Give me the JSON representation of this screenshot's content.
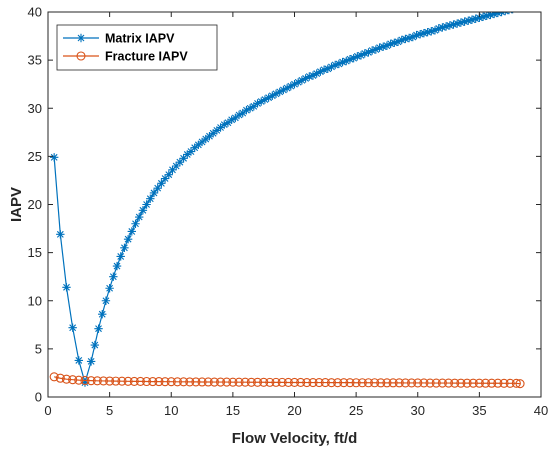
{
  "chart_data": {
    "type": "line",
    "xlabel": "Flow Velocity, ft/d",
    "ylabel": "IAPV",
    "xlim": [
      0,
      40
    ],
    "ylim": [
      0,
      40
    ],
    "xticks": [
      0,
      5,
      10,
      15,
      20,
      25,
      30,
      35,
      40
    ],
    "yticks": [
      0,
      5,
      10,
      15,
      20,
      25,
      30,
      35,
      40
    ],
    "grid": false,
    "legend_position": "top-left",
    "series": [
      {
        "name": "Matrix IAPV",
        "color": "#0072BD",
        "marker": "asterisk",
        "x": [
          0.5,
          1.0,
          1.5,
          2.0,
          2.5,
          3.0,
          3.5,
          3.8,
          4.1,
          4.4,
          4.7,
          5.0,
          5.3,
          5.6,
          5.9,
          6.2,
          6.5,
          6.8,
          7.1,
          7.4,
          7.7,
          8.0,
          8.3,
          8.6,
          8.9,
          9.2,
          9.5,
          9.8,
          10.1,
          10.4,
          10.7,
          11.0,
          11.3,
          11.6,
          11.9,
          12.2,
          12.5,
          12.8,
          13.1,
          13.4,
          13.7,
          14.0,
          14.3,
          14.6,
          14.9,
          15.2,
          15.5,
          15.8,
          16.1,
          16.4,
          16.7,
          17.0,
          17.3,
          17.6,
          17.9,
          18.2,
          18.5,
          18.8,
          19.1,
          19.4,
          19.7,
          20.0,
          20.3,
          20.6,
          20.9,
          21.2,
          21.5,
          21.8,
          22.1,
          22.4,
          22.7,
          23.0,
          23.3,
          23.6,
          23.9,
          24.2,
          24.5,
          24.8,
          25.1,
          25.4,
          25.7,
          26.0,
          26.3,
          26.6,
          26.9,
          27.2,
          27.5,
          27.8,
          28.1,
          28.4,
          28.7,
          29.0,
          29.3,
          29.6,
          29.9,
          30.2,
          30.5,
          30.8,
          31.1,
          31.4,
          31.7,
          32.0,
          32.3,
          32.6,
          32.9,
          33.2,
          33.5,
          33.8,
          34.1,
          34.4,
          34.7,
          35.0,
          35.3,
          35.6,
          35.9,
          36.2,
          36.5,
          36.8,
          37.1,
          37.4,
          37.7,
          38.0,
          38.3
        ],
        "y": [
          24.9,
          16.9,
          11.4,
          7.2,
          3.8,
          1.5,
          3.7,
          5.4,
          7.1,
          8.6,
          10.0,
          11.3,
          12.5,
          13.6,
          14.6,
          15.5,
          16.4,
          17.2,
          18.0,
          18.7,
          19.4,
          20.0,
          20.6,
          21.2,
          21.7,
          22.2,
          22.7,
          23.1,
          23.6,
          24.0,
          24.4,
          24.8,
          25.2,
          25.5,
          25.9,
          26.2,
          26.5,
          26.8,
          27.1,
          27.4,
          27.7,
          28.0,
          28.3,
          28.5,
          28.8,
          29.0,
          29.3,
          29.5,
          29.8,
          30.0,
          30.2,
          30.5,
          30.7,
          30.9,
          31.1,
          31.3,
          31.5,
          31.7,
          31.9,
          32.1,
          32.3,
          32.5,
          32.7,
          32.9,
          33.1,
          33.3,
          33.4,
          33.6,
          33.8,
          34.0,
          34.1,
          34.3,
          34.5,
          34.6,
          34.8,
          34.9,
          35.1,
          35.2,
          35.4,
          35.5,
          35.7,
          35.8,
          36.0,
          36.1,
          36.3,
          36.4,
          36.5,
          36.7,
          36.8,
          36.9,
          37.1,
          37.2,
          37.3,
          37.4,
          37.6,
          37.7,
          37.8,
          37.9,
          38.0,
          38.1,
          38.3,
          38.4,
          38.5,
          38.6,
          38.7,
          38.8,
          38.9,
          39.0,
          39.1,
          39.2,
          39.3,
          39.4,
          39.5,
          39.6,
          39.7,
          39.8,
          39.9,
          40.0,
          40.1,
          40.2,
          40.3,
          40.4,
          40.5
        ]
      },
      {
        "name": "Fracture IAPV",
        "color": "#D95319",
        "marker": "circle",
        "x": [
          0.5,
          1.0,
          1.5,
          2.0,
          2.5,
          3.0,
          3.5,
          4.0,
          4.5,
          5.0,
          5.5,
          6.0,
          6.5,
          7.0,
          7.5,
          8.0,
          8.5,
          9.0,
          9.5,
          10.0,
          10.5,
          11.0,
          11.5,
          12.0,
          12.5,
          13.0,
          13.5,
          14.0,
          14.5,
          15.0,
          15.5,
          16.0,
          16.5,
          17.0,
          17.5,
          18.0,
          18.5,
          19.0,
          19.5,
          20.0,
          20.5,
          21.0,
          21.5,
          22.0,
          22.5,
          23.0,
          23.5,
          24.0,
          24.5,
          25.0,
          25.5,
          26.0,
          26.5,
          27.0,
          27.5,
          28.0,
          28.5,
          29.0,
          29.5,
          30.0,
          30.5,
          31.0,
          31.5,
          32.0,
          32.5,
          33.0,
          33.5,
          34.0,
          34.5,
          35.0,
          35.5,
          36.0,
          36.5,
          37.0,
          37.5,
          38.0,
          38.3
        ],
        "y": [
          2.1,
          1.95,
          1.85,
          1.8,
          1.75,
          1.72,
          1.7,
          1.68,
          1.67,
          1.66,
          1.65,
          1.64,
          1.63,
          1.62,
          1.62,
          1.61,
          1.6,
          1.6,
          1.59,
          1.59,
          1.58,
          1.58,
          1.57,
          1.57,
          1.56,
          1.56,
          1.55,
          1.55,
          1.55,
          1.54,
          1.54,
          1.54,
          1.53,
          1.53,
          1.53,
          1.52,
          1.52,
          1.52,
          1.51,
          1.51,
          1.51,
          1.5,
          1.5,
          1.5,
          1.5,
          1.49,
          1.49,
          1.49,
          1.49,
          1.48,
          1.48,
          1.48,
          1.48,
          1.47,
          1.47,
          1.47,
          1.47,
          1.46,
          1.46,
          1.46,
          1.46,
          1.45,
          1.45,
          1.45,
          1.45,
          1.44,
          1.44,
          1.44,
          1.44,
          1.43,
          1.43,
          1.43,
          1.43,
          1.42,
          1.42,
          1.42,
          1.38
        ]
      }
    ]
  }
}
